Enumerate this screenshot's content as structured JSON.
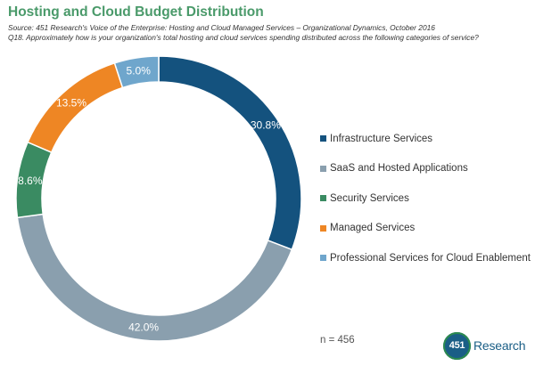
{
  "header": {
    "title": "Hosting and Cloud Budget Distribution",
    "source": "Source: 451 Research's Voice of the Enterprise: Hosting and Cloud Managed Services – Organizational Dynamics, October 2016",
    "question": "Q18. Approximately how is your organization's total hosting and cloud services spending distributed across the following categories of service?"
  },
  "chart_data": {
    "type": "pie",
    "title": "Hosting and Cloud Budget Distribution",
    "legend_position": "right",
    "series": [
      {
        "name": "Infrastructure Services",
        "value": 30.8,
        "label": "30.8%",
        "color": "#14527e"
      },
      {
        "name": "SaaS and Hosted Applications",
        "value": 42.0,
        "label": "42.0%",
        "color": "#8a9fae"
      },
      {
        "name": "Security Services",
        "value": 8.6,
        "label": "8.6%",
        "color": "#3a8b62"
      },
      {
        "name": "Managed Services",
        "value": 13.5,
        "label": "13.5%",
        "color": "#ee8624"
      },
      {
        "name": "Professional Services for Cloud Enablement",
        "value": 5.0,
        "label": "5.0%",
        "color": "#6fa6cc"
      }
    ]
  },
  "footer": {
    "sample_size": "n = 456",
    "logo_number": "451",
    "logo_text": "Research"
  }
}
